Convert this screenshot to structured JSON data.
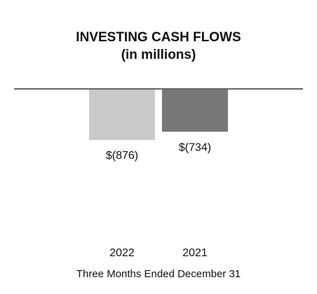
{
  "chart_data": {
    "type": "bar",
    "title": "INVESTING CASH FLOWS",
    "subtitle": "(in millions)",
    "categories": [
      "2022",
      "2021"
    ],
    "values": [
      -876,
      -734
    ],
    "value_labels": [
      "$(876)",
      "$(734)"
    ],
    "colors": [
      "#c9c9c9",
      "#777777"
    ],
    "x_label": "Three Months Ended December 31"
  }
}
